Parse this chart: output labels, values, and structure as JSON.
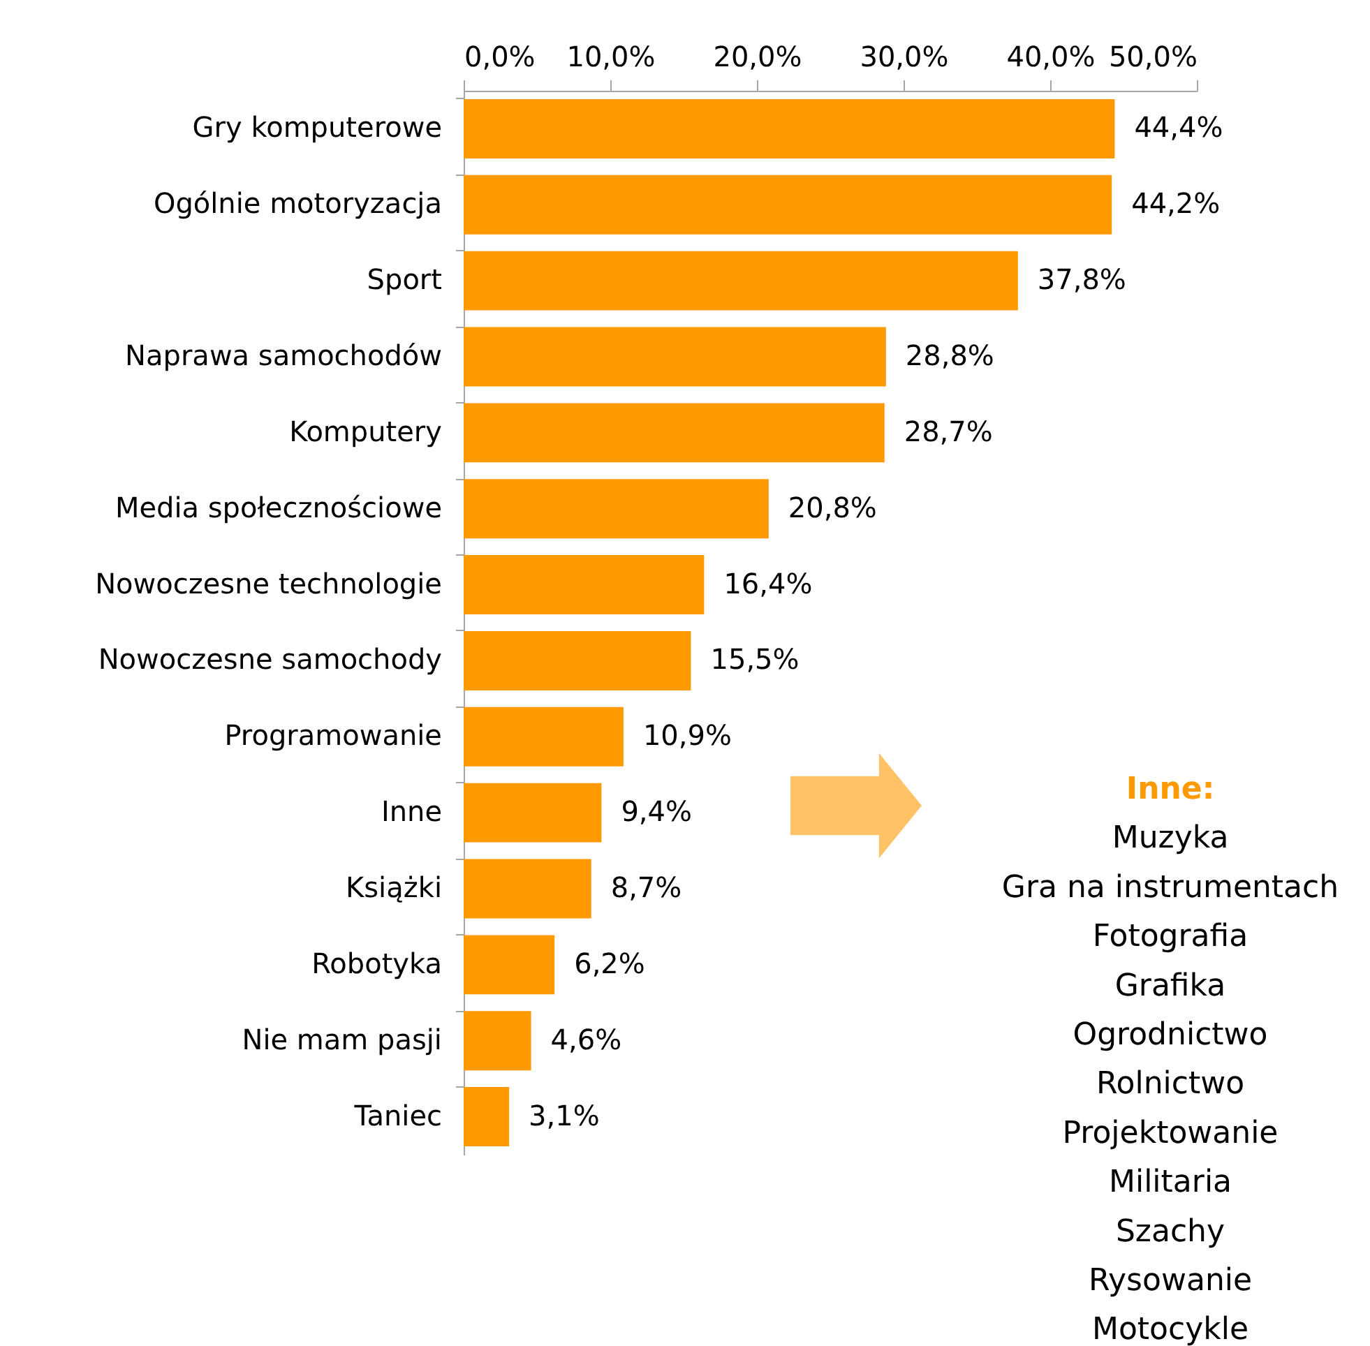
{
  "chart_data": {
    "type": "bar",
    "orientation": "horizontal",
    "categories": [
      "Gry komputerowe",
      "Ogólnie motoryzacja",
      "Sport",
      "Naprawa samochodów",
      "Komputery",
      "Media społecznościowe",
      "Nowoczesne technologie",
      "Nowoczesne samochody",
      "Programowanie",
      "Inne",
      "Książki",
      "Robotyka",
      "Nie mam pasji",
      "Taniec"
    ],
    "values": [
      44.4,
      44.2,
      37.8,
      28.8,
      28.7,
      20.8,
      16.4,
      15.5,
      10.9,
      9.4,
      8.7,
      6.2,
      4.6,
      3.1
    ],
    "value_labels": [
      "44,4%",
      "44,2%",
      "37,8%",
      "28,8%",
      "28,7%",
      "20,8%",
      "16,4%",
      "15,5%",
      "10,9%",
      "9,4%",
      "8,7%",
      "6,2%",
      "4,6%",
      "3,1%"
    ],
    "color": "#ff9900",
    "xlim": [
      0,
      50
    ],
    "xticks": [
      {
        "value": 0,
        "label": "0,0%"
      },
      {
        "value": 10,
        "label": "10,0%"
      },
      {
        "value": 20,
        "label": "20,0%"
      },
      {
        "value": 30,
        "label": "30,0%"
      },
      {
        "value": 40,
        "label": "40,0%"
      },
      {
        "value": 50,
        "label": "50,0%"
      }
    ],
    "grid": false,
    "annotations": [
      "Inne:",
      "Muzyka",
      "Gra na instrumentach",
      "Fotografia",
      "Grafika",
      "Ogrodnictwo",
      "Rolnictwo",
      "Projektowanie",
      "Militaria",
      "Szachy",
      "Rysowanie",
      "Motocykle"
    ]
  }
}
